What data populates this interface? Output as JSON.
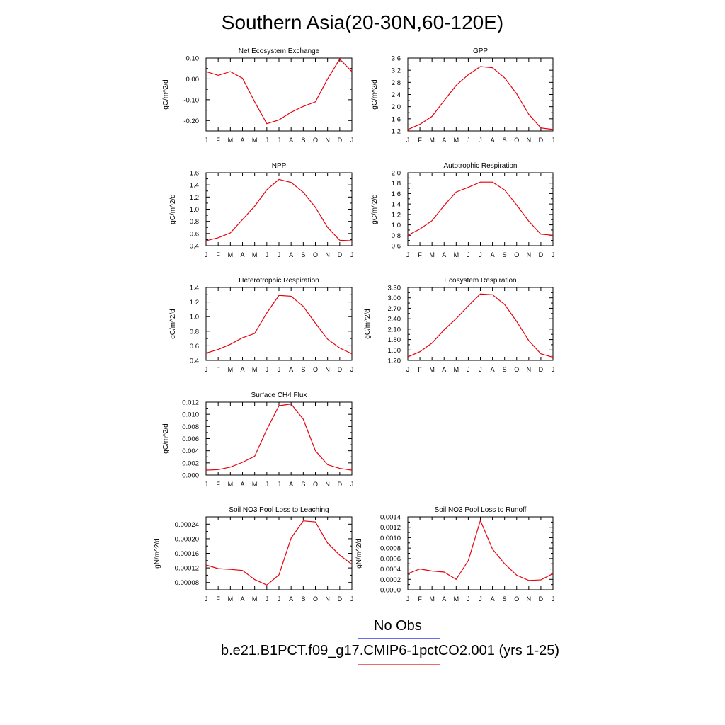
{
  "title": "Southern Asia(20-30N,60-120E)",
  "months": [
    "J",
    "F",
    "M",
    "A",
    "M",
    "J",
    "J",
    "A",
    "S",
    "O",
    "N",
    "D",
    "J"
  ],
  "colors": {
    "model_line": "#e8000b",
    "obs_line": "#6b6bef",
    "model_legend": "#ef6b6b"
  },
  "legend": {
    "obs_label": "No Obs",
    "model_label": "b.e21.B1PCT.f09_g17.CMIP6-1pctCO2.001 (yrs 1-25)"
  },
  "chart_data": [
    {
      "type": "line",
      "title": "Net Ecosystem Exchange",
      "ylabel": "gC/m^2/d",
      "ylim": [
        -0.25,
        0.1
      ],
      "yticks": [
        "0.10",
        "0.00",
        "-0.10",
        "-0.20"
      ],
      "ytick_values": [
        0.1,
        0.0,
        -0.1,
        -0.2
      ],
      "values": [
        0.035,
        0.017,
        0.035,
        0.003,
        -0.11,
        -0.215,
        -0.197,
        -0.16,
        -0.132,
        -0.11,
        0.0,
        0.095,
        0.035
      ]
    },
    {
      "type": "line",
      "title": "GPP",
      "ylabel": "gC/m^2/d",
      "ylim": [
        1.2,
        3.6
      ],
      "yticks": [
        "3.6",
        "3.2",
        "2.8",
        "2.4",
        "2.0",
        "1.6",
        "1.2"
      ],
      "ytick_values": [
        3.6,
        3.2,
        2.8,
        2.4,
        2.0,
        1.6,
        1.2
      ],
      "values": [
        1.25,
        1.42,
        1.68,
        2.2,
        2.7,
        3.05,
        3.32,
        3.28,
        2.95,
        2.42,
        1.75,
        1.3,
        1.25
      ]
    },
    {
      "type": "line",
      "title": "NPP",
      "ylabel": "gC/m^2/d",
      "ylim": [
        0.4,
        1.6
      ],
      "yticks": [
        "1.6",
        "1.4",
        "1.2",
        "1.0",
        "0.8",
        "0.6",
        "0.4"
      ],
      "ytick_values": [
        1.6,
        1.4,
        1.2,
        1.0,
        0.8,
        0.6,
        0.4
      ],
      "values": [
        0.48,
        0.53,
        0.61,
        0.83,
        1.05,
        1.32,
        1.49,
        1.44,
        1.28,
        1.03,
        0.7,
        0.49,
        0.48
      ]
    },
    {
      "type": "line",
      "title": "Autotrophic Respiration",
      "ylabel": "gC/m^2/d",
      "ylim": [
        0.6,
        2.0
      ],
      "yticks": [
        "2.0",
        "1.8",
        "1.6",
        "1.4",
        "1.2",
        "1.0",
        "0.8",
        "0.6"
      ],
      "ytick_values": [
        2.0,
        1.8,
        1.6,
        1.4,
        1.2,
        1.0,
        0.8,
        0.6
      ],
      "values": [
        0.8,
        0.92,
        1.08,
        1.37,
        1.63,
        1.72,
        1.82,
        1.82,
        1.67,
        1.38,
        1.07,
        0.82,
        0.8
      ]
    },
    {
      "type": "line",
      "title": "Heterotrophic Respiration",
      "ylabel": "gC/m^2/d",
      "ylim": [
        0.4,
        1.4
      ],
      "yticks": [
        "1.4",
        "1.2",
        "1.0",
        "0.8",
        "0.6",
        "0.4"
      ],
      "ytick_values": [
        1.4,
        1.2,
        1.0,
        0.8,
        0.6,
        0.4
      ],
      "values": [
        0.5,
        0.55,
        0.62,
        0.71,
        0.77,
        1.05,
        1.29,
        1.28,
        1.14,
        0.91,
        0.69,
        0.57,
        0.49
      ]
    },
    {
      "type": "line",
      "title": "Ecosystem Respiration",
      "ylabel": "gC/m^2/d",
      "ylim": [
        1.2,
        3.3
      ],
      "yticks": [
        "3.30",
        "3.00",
        "2.70",
        "2.40",
        "2.10",
        "1.80",
        "1.50",
        "1.20"
      ],
      "ytick_values": [
        3.3,
        3.0,
        2.7,
        2.4,
        2.1,
        1.8,
        1.5,
        1.2
      ],
      "values": [
        1.3,
        1.45,
        1.7,
        2.08,
        2.4,
        2.77,
        3.11,
        3.09,
        2.81,
        2.32,
        1.77,
        1.39,
        1.29
      ]
    },
    {
      "type": "line",
      "title": "Surface CH4 Flux",
      "ylabel": "gC/m^2/d",
      "ylim": [
        0.0,
        0.012
      ],
      "yticks": [
        "0.012",
        "0.010",
        "0.008",
        "0.006",
        "0.004",
        "0.002",
        "0.000"
      ],
      "ytick_values": [
        0.012,
        0.01,
        0.008,
        0.006,
        0.004,
        0.002,
        0.0
      ],
      "values": [
        0.0008,
        0.0009,
        0.0013,
        0.0021,
        0.0031,
        0.0075,
        0.0114,
        0.0117,
        0.0092,
        0.004,
        0.0017,
        0.0011,
        0.0008
      ]
    },
    {
      "type": "line",
      "title": "Soil NO3 Pool Loss to Leaching",
      "ylabel": "gN/m^2/d",
      "ylim": [
        6e-05,
        0.00026
      ],
      "yticks": [
        "0.00024",
        "0.00020",
        "0.00016",
        "0.00012",
        "0.00008"
      ],
      "ytick_values": [
        0.00024,
        0.0002,
        0.00016,
        0.00012,
        8e-05
      ],
      "values": [
        0.000128,
        0.000118,
        0.000116,
        0.000113,
        8.8e-05,
        7.3e-05,
        0.000101,
        0.000202,
        0.000249,
        0.000246,
        0.000188,
        0.000155,
        0.00013
      ]
    },
    {
      "type": "line",
      "title": "Soil NO3 Pool Loss to Runoff",
      "ylabel": "gN/m^2/d",
      "ylim": [
        0.0,
        0.0014
      ],
      "yticks": [
        "0.0014",
        "0.0012",
        "0.0010",
        "0.0008",
        "0.0006",
        "0.0004",
        "0.0002",
        "0.0000"
      ],
      "ytick_values": [
        0.0014,
        0.0012,
        0.001,
        0.0008,
        0.0006,
        0.0004,
        0.0002,
        0.0
      ],
      "values": [
        0.00031,
        0.0004,
        0.00036,
        0.00034,
        0.0002,
        0.00056,
        0.00133,
        0.00078,
        0.0005,
        0.00028,
        0.00018,
        0.00019,
        0.00031
      ]
    }
  ]
}
